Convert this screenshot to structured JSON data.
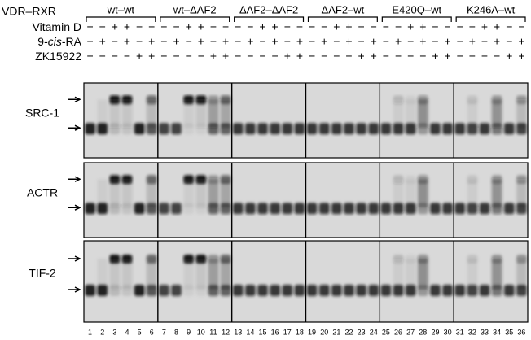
{
  "header": {
    "label": "VDR–RXR",
    "groups": [
      "wt–wt",
      "wt–ΔAF2",
      "ΔAF2–ΔAF2",
      "ΔAF2–wt",
      "E420Q–wt",
      "K246A–wt"
    ]
  },
  "rows": [
    {
      "label_parts": [
        "Vitamin D"
      ],
      "signs": [
        "−",
        "−",
        "+",
        "+",
        "−",
        "−",
        "−",
        "−",
        "+",
        "+",
        "−",
        "−",
        "−",
        "−",
        "+",
        "+",
        "−",
        "−",
        "−",
        "−",
        "+",
        "+",
        "−",
        "−",
        "−",
        "−",
        "+",
        "+",
        "−",
        "−",
        "−",
        "−",
        "+",
        "+",
        "−",
        "−"
      ]
    },
    {
      "label_parts": [
        "9-",
        "cis",
        "-RA"
      ],
      "signs": [
        "−",
        "+",
        "−",
        "+",
        "−",
        "+",
        "−",
        "+",
        "−",
        "+",
        "−",
        "+",
        "−",
        "+",
        "−",
        "+",
        "−",
        "+",
        "−",
        "+",
        "−",
        "+",
        "−",
        "+",
        "−",
        "+",
        "−",
        "+",
        "−",
        "+",
        "−",
        "+",
        "−",
        "+",
        "−",
        "+"
      ]
    },
    {
      "label_parts": [
        "ZK15922"
      ],
      "signs": [
        "−",
        "−",
        "−",
        "−",
        "+",
        "+",
        "−",
        "−",
        "−",
        "−",
        "+",
        "+",
        "−",
        "−",
        "−",
        "−",
        "+",
        "+",
        "−",
        "−",
        "−",
        "−",
        "+",
        "+",
        "−",
        "−",
        "−",
        "−",
        "+",
        "+",
        "−",
        "−",
        "−",
        "−",
        "+",
        "+"
      ]
    }
  ],
  "panels": [
    "SRC-1",
    "ACTR",
    "TIF-2"
  ],
  "lanes": [
    1,
    2,
    3,
    4,
    5,
    6,
    7,
    8,
    9,
    10,
    11,
    12,
    13,
    14,
    15,
    16,
    17,
    18,
    19,
    20,
    21,
    22,
    23,
    24,
    25,
    26,
    27,
    28,
    29,
    30,
    31,
    32,
    33,
    34,
    35,
    36
  ]
}
